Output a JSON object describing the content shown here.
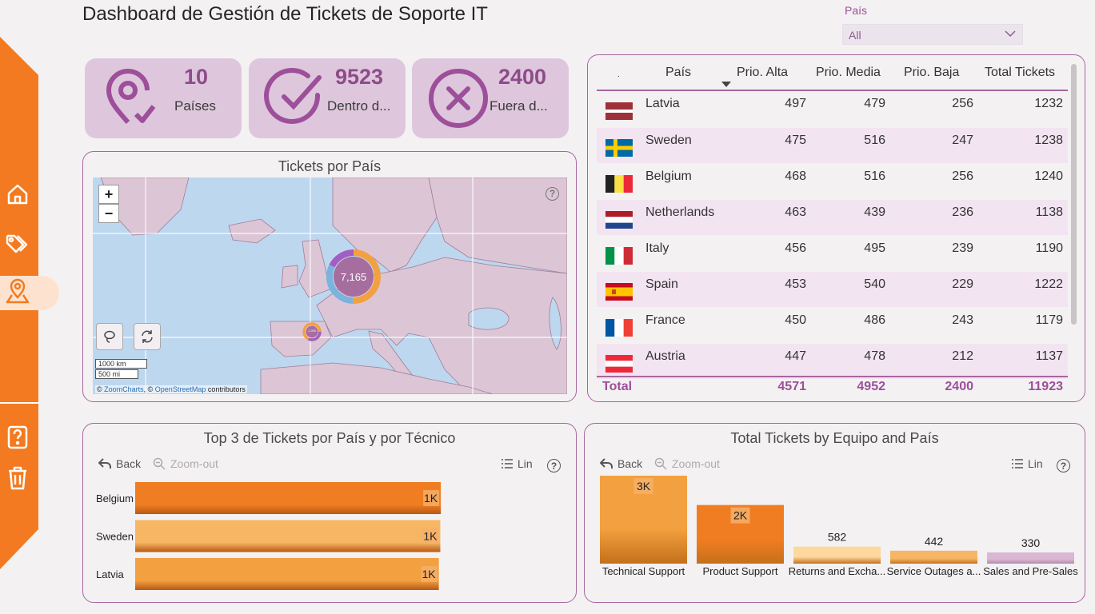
{
  "title": "Dashboard de Gestión de Tickets de Soporte IT",
  "nav": {
    "items": [
      "home",
      "tags",
      "map-pin",
      "help",
      "delete"
    ]
  },
  "slicer": {
    "label": "País",
    "value": "All"
  },
  "kpis": [
    {
      "value": "10",
      "label": "Países",
      "icon": "location-check-icon"
    },
    {
      "value": "9523",
      "label": "Dentro d...",
      "icon": "check-circle-icon"
    },
    {
      "value": "2400",
      "label": "Fuera d...",
      "icon": "x-circle-icon"
    }
  ],
  "map": {
    "title": "Tickets por País",
    "zoom_in": "+",
    "zoom_out": "−",
    "help": "?",
    "cluster_label": "7,165",
    "small_cluster_label": "1,200",
    "scale_km": "1000 km",
    "scale_mi": "500 mi",
    "attribution_prefix": "© ",
    "attribution_zc": "ZoomCharts",
    "attribution_mid": ", © ",
    "attribution_osm": "OpenStreetMap",
    "attribution_suffix": " contributors"
  },
  "table": {
    "headers": [
      ".",
      "País",
      "Prio. Alta",
      "Prio. Media",
      "Prio. Baja",
      "Total Tickets"
    ],
    "rows": [
      {
        "country": "Latvia",
        "alta": "497",
        "media": "479",
        "baja": "256",
        "total": "1232",
        "flag": "latvia"
      },
      {
        "country": "Sweden",
        "alta": "475",
        "media": "516",
        "baja": "247",
        "total": "1238",
        "flag": "sweden"
      },
      {
        "country": "Belgium",
        "alta": "468",
        "media": "516",
        "baja": "256",
        "total": "1240",
        "flag": "belgium"
      },
      {
        "country": "Netherlands",
        "alta": "463",
        "media": "439",
        "baja": "236",
        "total": "1138",
        "flag": "netherlands"
      },
      {
        "country": "Italy",
        "alta": "456",
        "media": "495",
        "baja": "239",
        "total": "1190",
        "flag": "italy"
      },
      {
        "country": "Spain",
        "alta": "453",
        "media": "540",
        "baja": "229",
        "total": "1222",
        "flag": "spain"
      },
      {
        "country": "France",
        "alta": "450",
        "media": "486",
        "baja": "243",
        "total": "1179",
        "flag": "france"
      },
      {
        "country": "Austria",
        "alta": "447",
        "media": "478",
        "baja": "212",
        "total": "1137",
        "flag": "austria"
      }
    ],
    "total": {
      "label": "Total",
      "alta": "4571",
      "media": "4952",
      "baja": "2400",
      "total": "11923"
    }
  },
  "chart_left": {
    "title": "Top 3 de Tickets por País y por Técnico",
    "back": "Back",
    "zoom_out": "Zoom-out",
    "lin": "Lin",
    "help": "?"
  },
  "chart_right": {
    "title": "Total Tickets by Equipo and País",
    "back": "Back",
    "zoom_out": "Zoom-out",
    "lin": "Lin",
    "help": "?"
  },
  "chart_data": [
    {
      "type": "bar",
      "orientation": "horizontal",
      "title": "Top 3 de Tickets por País y por Técnico",
      "categories": [
        "Belgium",
        "Sweden",
        "Latvia"
      ],
      "values": [
        1240,
        1238,
        1232
      ],
      "data_labels": [
        "1K",
        "1K",
        "1K"
      ],
      "colors": [
        "#f07d22",
        "#f6b664",
        "#f3a040"
      ],
      "xlim": [
        0,
        1720
      ]
    },
    {
      "type": "bar",
      "orientation": "vertical",
      "title": "Total Tickets by Equipo and País",
      "categories": [
        "Technical Support",
        "Product Support",
        "Returns and Excha...",
        "Service Outages a...",
        "Sales and Pre-Sales"
      ],
      "values": [
        3000,
        2000,
        582,
        442,
        330
      ],
      "data_labels": [
        "3K",
        "2K",
        "582",
        "442",
        "330"
      ],
      "colors": [
        "#f3a040",
        "#f07d22",
        "#fdd99e",
        "#f6b664",
        "#d8b8d2"
      ],
      "ylim": [
        0,
        3000
      ]
    }
  ],
  "colors": {
    "sidebar": "#f37a20",
    "accent_purple": "#9d4f9a",
    "card_bg": "#dec7dc"
  }
}
